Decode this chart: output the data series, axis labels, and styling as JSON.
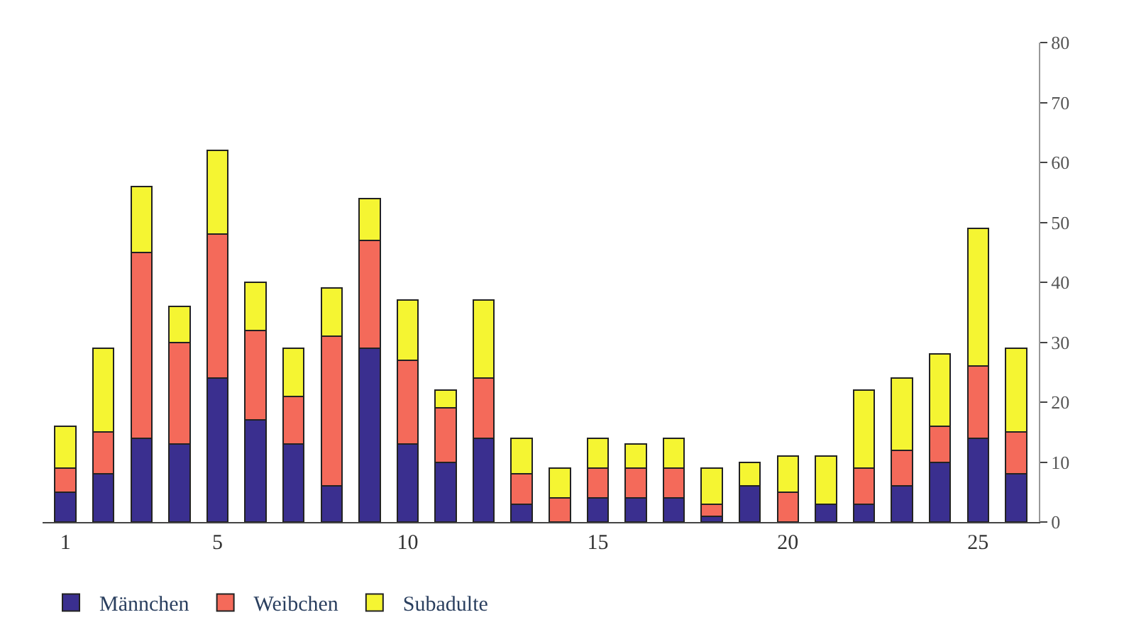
{
  "chart_data": {
    "type": "bar",
    "stacked": true,
    "categories": [
      "1",
      null,
      null,
      null,
      "5",
      null,
      null,
      null,
      null,
      "10",
      null,
      null,
      null,
      null,
      "15",
      null,
      null,
      null,
      null,
      "20",
      null,
      null,
      null,
      null,
      "25",
      null
    ],
    "series": [
      {
        "name": "Männchen",
        "color": "#3a2f8f",
        "values": [
          5,
          8,
          14,
          13,
          24,
          17,
          13,
          6,
          29,
          13,
          10,
          14,
          3,
          0,
          4,
          4,
          4,
          1,
          6,
          0,
          3,
          3,
          6,
          10,
          14,
          8
        ]
      },
      {
        "name": "Weibchen",
        "color": "#f46a5a",
        "values": [
          4,
          7,
          31,
          17,
          24,
          15,
          8,
          25,
          18,
          14,
          9,
          10,
          5,
          4,
          5,
          5,
          5,
          2,
          0,
          5,
          0,
          6,
          6,
          6,
          12,
          7
        ]
      },
      {
        "name": "Subadulte",
        "color": "#f5f532",
        "values": [
          7,
          14,
          11,
          6,
          14,
          8,
          8,
          8,
          7,
          10,
          3,
          13,
          6,
          5,
          5,
          4,
          5,
          6,
          4,
          6,
          8,
          13,
          12,
          12,
          23,
          14
        ]
      }
    ],
    "ylim": [
      0,
      80
    ],
    "yticks": [
      0,
      10,
      20,
      30,
      40,
      50,
      60,
      70,
      80
    ],
    "grid": false,
    "legend": "bottom left"
  }
}
